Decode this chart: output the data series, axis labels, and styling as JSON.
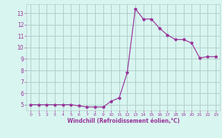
{
  "x": [
    0,
    1,
    2,
    3,
    4,
    5,
    6,
    7,
    8,
    9,
    10,
    11,
    12,
    13,
    14,
    15,
    16,
    17,
    18,
    19,
    20,
    21,
    22,
    23
  ],
  "y": [
    5.0,
    5.0,
    5.0,
    5.0,
    5.0,
    5.0,
    4.9,
    4.8,
    4.8,
    4.8,
    5.3,
    5.6,
    7.8,
    13.4,
    12.5,
    12.5,
    11.7,
    11.1,
    10.7,
    10.7,
    10.4,
    9.1,
    9.2,
    9.2
  ],
  "line_color": "#993399",
  "marker": "*",
  "marker_size": 3,
  "bg_color": "#d8f5f0",
  "grid_color": "#b0ccc8",
  "tick_color": "#993399",
  "label_color": "#993399",
  "xlabel": "Windchill (Refroidissement éolien,°C)",
  "xlim": [
    -0.5,
    23.5
  ],
  "ylim": [
    4.5,
    13.8
  ],
  "yticks": [
    5,
    6,
    7,
    8,
    9,
    10,
    11,
    12,
    13
  ],
  "xticks": [
    0,
    1,
    2,
    3,
    4,
    5,
    6,
    7,
    8,
    9,
    10,
    11,
    12,
    13,
    14,
    15,
    16,
    17,
    18,
    19,
    20,
    21,
    22,
    23
  ]
}
